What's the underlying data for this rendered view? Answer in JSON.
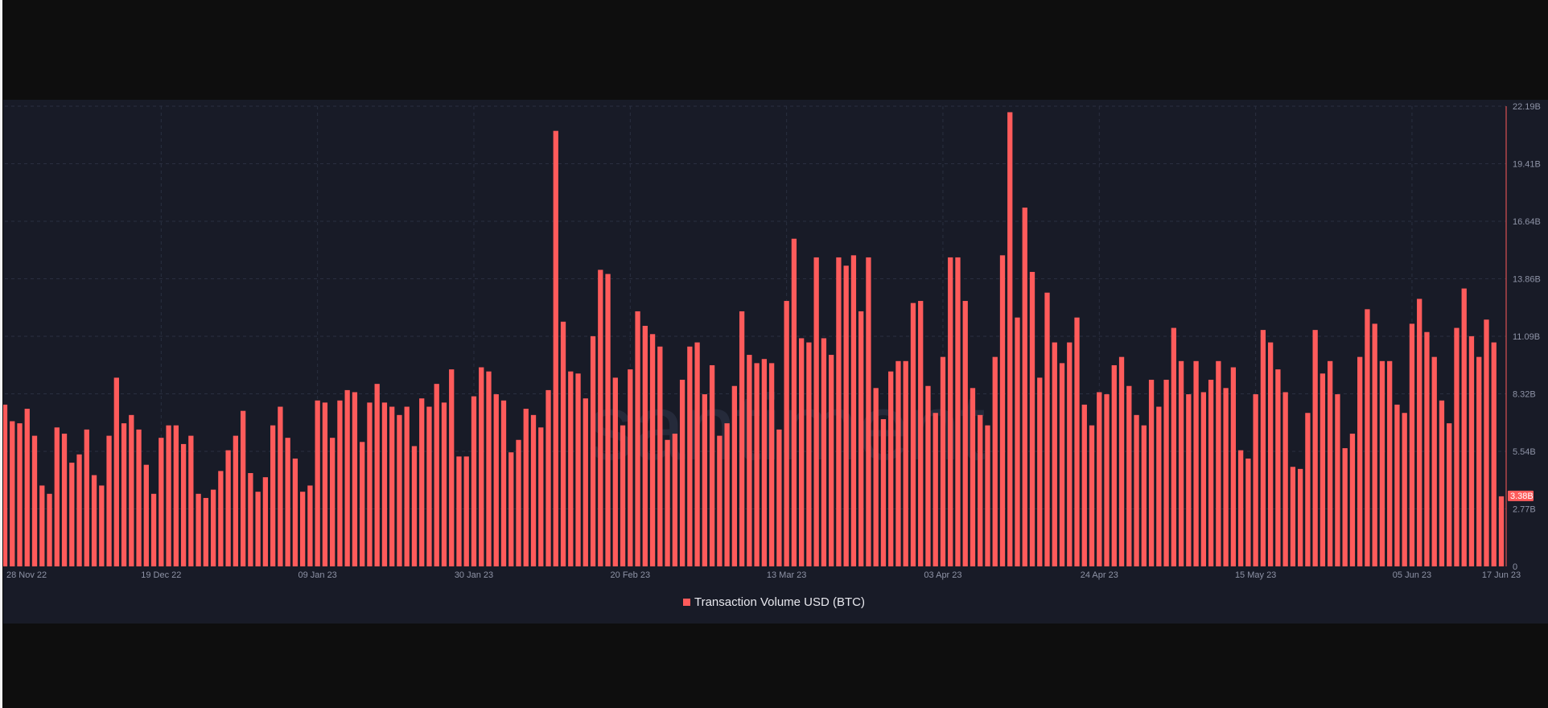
{
  "colors": {
    "bar": "#ff5b5b",
    "panel": "#181b27",
    "grid": "#2a2f40",
    "axis": "#ff5b5b",
    "tick_text": "#8e93a6"
  },
  "watermark": "santiment",
  "chart_data": {
    "type": "bar",
    "title": "",
    "xlabel": "",
    "ylabel": "",
    "legend_position": "bottom",
    "grid": true,
    "x_start": "2022-11-28",
    "x_end": "2023-06-17",
    "x_ticks": [
      "28 Nov 22",
      "19 Dec 22",
      "09 Jan 23",
      "30 Jan 23",
      "20 Feb 23",
      "13 Mar 23",
      "03 Apr 23",
      "24 Apr 23",
      "15 May 23",
      "05 Jun 23",
      "17 Jun 23"
    ],
    "y_ticks": [
      "0",
      "2.77B",
      "5.54B",
      "8.32B",
      "11.09B",
      "13.86B",
      "16.64B",
      "19.41B",
      "22.19B"
    ],
    "ylim": [
      0,
      22.19
    ],
    "y_unit": "B",
    "last_value_label": "3.38B",
    "series": [
      {
        "name": "Transaction Volume USD (BTC)",
        "values": [
          7.8,
          7.0,
          6.9,
          7.6,
          6.3,
          3.9,
          3.5,
          6.7,
          6.4,
          5.0,
          5.4,
          6.6,
          4.4,
          3.9,
          6.3,
          9.1,
          6.9,
          7.3,
          6.6,
          4.9,
          3.5,
          6.2,
          6.8,
          6.8,
          5.9,
          6.3,
          3.5,
          3.3,
          3.7,
          4.6,
          5.6,
          6.3,
          7.5,
          4.5,
          3.6,
          4.3,
          6.8,
          7.7,
          6.2,
          5.2,
          3.6,
          3.9,
          8.0,
          7.9,
          6.2,
          8.0,
          8.5,
          8.4,
          6.0,
          7.9,
          8.8,
          7.9,
          7.7,
          7.3,
          7.7,
          5.8,
          8.1,
          7.7,
          8.8,
          7.9,
          9.5,
          5.3,
          5.3,
          8.2,
          9.6,
          9.4,
          8.3,
          8.0,
          5.5,
          6.1,
          7.6,
          7.3,
          6.7,
          8.5,
          21.0,
          11.8,
          9.4,
          9.3,
          8.1,
          11.1,
          14.3,
          14.1,
          9.1,
          6.8,
          9.5,
          12.3,
          11.6,
          11.2,
          10.6,
          6.1,
          6.4,
          9.0,
          10.6,
          10.8,
          8.3,
          9.7,
          6.3,
          6.9,
          8.7,
          12.3,
          10.2,
          9.8,
          10.0,
          9.8,
          6.6,
          12.8,
          15.8,
          11.0,
          10.8,
          14.9,
          11.0,
          10.2,
          14.9,
          14.5,
          15.0,
          12.3,
          14.9,
          8.6,
          7.1,
          9.4,
          9.9,
          9.9,
          12.7,
          12.8,
          8.7,
          7.4,
          10.1,
          14.9,
          14.9,
          12.8,
          8.6,
          7.3,
          6.8,
          10.1,
          15.0,
          21.9,
          12.0,
          17.3,
          14.2,
          9.1,
          13.2,
          10.8,
          9.8,
          10.8,
          12.0,
          7.8,
          6.8,
          8.4,
          8.3,
          9.7,
          10.1,
          8.7,
          7.3,
          6.8,
          9.0,
          7.7,
          9.0,
          11.5,
          9.9,
          8.3,
          9.9,
          8.4,
          9.0,
          9.9,
          8.6,
          9.6,
          5.6,
          5.2,
          8.3,
          11.4,
          10.8,
          9.5,
          8.4,
          4.8,
          4.7,
          7.4,
          11.4,
          9.3,
          9.9,
          8.3,
          5.7,
          6.4,
          10.1,
          12.4,
          11.7,
          9.9,
          9.9,
          7.8,
          7.4,
          11.7,
          12.9,
          11.3,
          10.1,
          8.0,
          6.9,
          11.5,
          13.4,
          11.1,
          10.1,
          11.9,
          10.8,
          3.38
        ]
      }
    ]
  }
}
